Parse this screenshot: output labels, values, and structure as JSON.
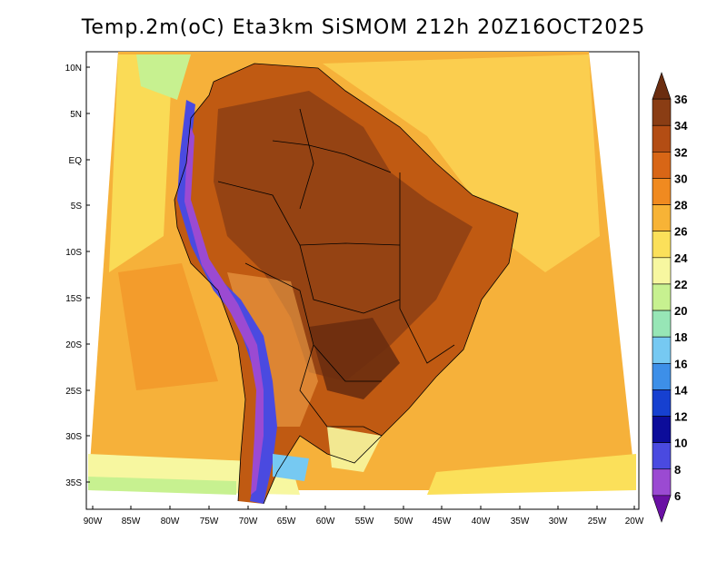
{
  "title": "Temp.2m(oC) Eta3km SiSMOM 212h 20Z16OCT2025",
  "lat_labels": [
    "10N",
    "5N",
    "EQ",
    "5S",
    "10S",
    "15S",
    "20S",
    "25S",
    "30S",
    "35S"
  ],
  "lon_labels": [
    "90W",
    "85W",
    "80W",
    "75W",
    "70W",
    "65W",
    "60W",
    "55W",
    "50W",
    "45W",
    "40W",
    "35W",
    "30W",
    "25W",
    "20W"
  ],
  "colorbar": {
    "labels": [
      "36",
      "34",
      "32",
      "30",
      "28",
      "26",
      "24",
      "22",
      "20",
      "18",
      "16",
      "14",
      "12",
      "10",
      "8",
      "6"
    ],
    "colors": [
      "#6b2d10",
      "#8a3d14",
      "#b34d14",
      "#d86616",
      "#f08a20",
      "#f7b336",
      "#fbe05a",
      "#f7f7a0",
      "#c7f190",
      "#97e6b6",
      "#76c9f2",
      "#3d8fe8",
      "#1640d0",
      "#0c0c9a",
      "#4a4ae0",
      "#9b4ad2",
      "#6a10a4"
    ]
  }
}
